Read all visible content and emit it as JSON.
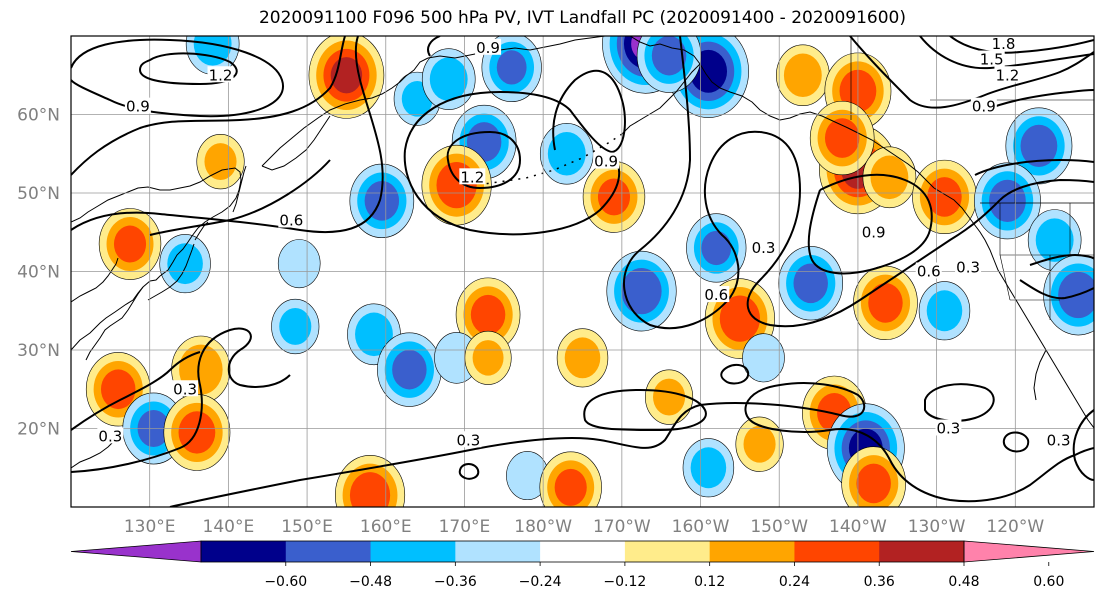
{
  "title": "2020091100 F096 500 hPa PV, IVT Landfall PC (2020091400 - 2020091600)",
  "lat_labels": [
    {
      "lat": 60,
      "label": "60°N"
    },
    {
      "lat": 50,
      "label": "50°N"
    },
    {
      "lat": 40,
      "label": "40°N"
    },
    {
      "lat": 30,
      "label": "30°N"
    },
    {
      "lat": 20,
      "label": "20°N"
    }
  ],
  "lon_labels": [
    {
      "lon": 130,
      "label": "130°E"
    },
    {
      "lon": 140,
      "label": "140°E"
    },
    {
      "lon": 150,
      "label": "150°E"
    },
    {
      "lon": 160,
      "label": "160°E"
    },
    {
      "lon": 170,
      "label": "170°E"
    },
    {
      "lon": 180,
      "label": "180°W"
    },
    {
      "lon": 190,
      "label": "170°W"
    },
    {
      "lon": 200,
      "label": "160°W"
    },
    {
      "lon": 210,
      "label": "150°W"
    },
    {
      "lon": 220,
      "label": "140°W"
    },
    {
      "lon": 230,
      "label": "130°W"
    },
    {
      "lon": 240,
      "label": "120°W"
    }
  ],
  "map_extent": {
    "lon": [
      120,
      250
    ],
    "lat": [
      10,
      70
    ]
  },
  "colorbar": {
    "colors": [
      "#9932cc",
      "#00008b",
      "#3a5fcd",
      "#00bfff",
      "#b0e2ff",
      "#ffffff",
      "#ffec8b",
      "#ffa500",
      "#ff4500",
      "#b22222",
      "#ff82ab"
    ],
    "tick_labels": [
      "−0.60",
      "−0.48",
      "−0.36",
      "−0.24",
      "−0.12",
      "0.12",
      "0.24",
      "0.36",
      "0.48",
      "0.60"
    ]
  },
  "contour_labels": [
    {
      "text": "0.9",
      "lon": 173,
      "lat": 68.5
    },
    {
      "text": "1.2",
      "lon": 139,
      "lat": 65
    },
    {
      "text": "0.9",
      "lon": 128.5,
      "lat": 61
    },
    {
      "text": "0.6",
      "lon": 148,
      "lat": 46.5
    },
    {
      "text": "1.2",
      "lon": 171,
      "lat": 52
    },
    {
      "text": "0.9",
      "lon": 188,
      "lat": 54
    },
    {
      "text": "0.3",
      "lon": 208,
      "lat": 43
    },
    {
      "text": "0.6",
      "lon": 202,
      "lat": 37
    },
    {
      "text": "0.9",
      "lon": 222,
      "lat": 45
    },
    {
      "text": "0.6",
      "lon": 229,
      "lat": 40
    },
    {
      "text": "1.8",
      "lon": 238.5,
      "lat": 69
    },
    {
      "text": "1.5",
      "lon": 237,
      "lat": 67
    },
    {
      "text": "1.2",
      "lon": 239,
      "lat": 65
    },
    {
      "text": "0.9",
      "lon": 236,
      "lat": 61
    },
    {
      "text": "0.3",
      "lon": 234,
      "lat": 40.5
    },
    {
      "text": "0.3",
      "lon": 134.5,
      "lat": 25
    },
    {
      "text": "0.3",
      "lon": 170.5,
      "lat": 18.5
    },
    {
      "text": "0.3",
      "lon": 231.5,
      "lat": 20
    },
    {
      "text": "0.3",
      "lon": 245.5,
      "lat": 18.5
    },
    {
      "text": "0.3",
      "lon": 125,
      "lat": 19
    }
  ],
  "pv_anomalies": [
    {
      "lon": 155,
      "lat": 65,
      "value": 0.5
    },
    {
      "lon": 138,
      "lat": 69,
      "value": -0.3
    },
    {
      "lon": 164,
      "lat": 62,
      "value": -0.24
    },
    {
      "lon": 168,
      "lat": 64.5,
      "value": -0.3
    },
    {
      "lon": 176,
      "lat": 66,
      "value": -0.36
    },
    {
      "lon": 193,
      "lat": 69,
      "value": -0.6
    },
    {
      "lon": 201,
      "lat": 65.5,
      "value": -0.55
    },
    {
      "lon": 196,
      "lat": 67.5,
      "value": -0.4
    },
    {
      "lon": 213,
      "lat": 65,
      "value": 0.3
    },
    {
      "lon": 220,
      "lat": 63,
      "value": 0.42
    },
    {
      "lon": 220,
      "lat": 53,
      "value": 0.52
    },
    {
      "lon": 218,
      "lat": 57,
      "value": 0.4
    },
    {
      "lon": 224,
      "lat": 52,
      "value": 0.3
    },
    {
      "lon": 231,
      "lat": 49.5,
      "value": 0.4
    },
    {
      "lon": 243,
      "lat": 56,
      "value": -0.42
    },
    {
      "lon": 239,
      "lat": 49,
      "value": -0.42
    },
    {
      "lon": 245,
      "lat": 44,
      "value": -0.3
    },
    {
      "lon": 248,
      "lat": 37,
      "value": -0.45
    },
    {
      "lon": 172.5,
      "lat": 56.5,
      "value": -0.4
    },
    {
      "lon": 169,
      "lat": 51,
      "value": 0.45
    },
    {
      "lon": 183,
      "lat": 55,
      "value": -0.3
    },
    {
      "lon": 189,
      "lat": 49.5,
      "value": 0.38
    },
    {
      "lon": 159.5,
      "lat": 49,
      "value": -0.4
    },
    {
      "lon": 139,
      "lat": 54,
      "value": 0.25
    },
    {
      "lon": 127.5,
      "lat": 43.5,
      "value": 0.38
    },
    {
      "lon": 134.5,
      "lat": 41,
      "value": -0.28
    },
    {
      "lon": 149,
      "lat": 41,
      "value": -0.2
    },
    {
      "lon": 173,
      "lat": 34.5,
      "value": 0.4
    },
    {
      "lon": 148.5,
      "lat": 33,
      "value": -0.25
    },
    {
      "lon": 158.5,
      "lat": 32,
      "value": -0.3
    },
    {
      "lon": 192.5,
      "lat": 37.5,
      "value": -0.45
    },
    {
      "lon": 205,
      "lat": 34,
      "value": 0.45
    },
    {
      "lon": 202,
      "lat": 43,
      "value": -0.36
    },
    {
      "lon": 214,
      "lat": 38.5,
      "value": -0.4
    },
    {
      "lon": 223.5,
      "lat": 36,
      "value": 0.4
    },
    {
      "lon": 231,
      "lat": 35,
      "value": -0.28
    },
    {
      "lon": 163,
      "lat": 27.5,
      "value": -0.4
    },
    {
      "lon": 169,
      "lat": 29,
      "value": -0.22
    },
    {
      "lon": 126,
      "lat": 25,
      "value": 0.4
    },
    {
      "lon": 130.5,
      "lat": 20,
      "value": -0.38
    },
    {
      "lon": 136.5,
      "lat": 27.5,
      "value": 0.35
    },
    {
      "lon": 136,
      "lat": 19.5,
      "value": 0.42
    },
    {
      "lon": 185,
      "lat": 29,
      "value": 0.28
    },
    {
      "lon": 173,
      "lat": 29,
      "value": 0.24
    },
    {
      "lon": 208,
      "lat": 29,
      "value": -0.2
    },
    {
      "lon": 217,
      "lat": 22,
      "value": 0.4
    },
    {
      "lon": 221,
      "lat": 17.5,
      "value": -0.52
    },
    {
      "lon": 222,
      "lat": 13,
      "value": 0.4
    },
    {
      "lon": 201,
      "lat": 15,
      "value": -0.28
    },
    {
      "lon": 158,
      "lat": 11.5,
      "value": 0.45
    },
    {
      "lon": 178,
      "lat": 14,
      "value": -0.2
    },
    {
      "lon": 183.5,
      "lat": 12.5,
      "value": 0.38
    },
    {
      "lon": 207.5,
      "lat": 18,
      "value": 0.25
    },
    {
      "lon": 196,
      "lat": 24,
      "value": 0.25
    }
  ]
}
